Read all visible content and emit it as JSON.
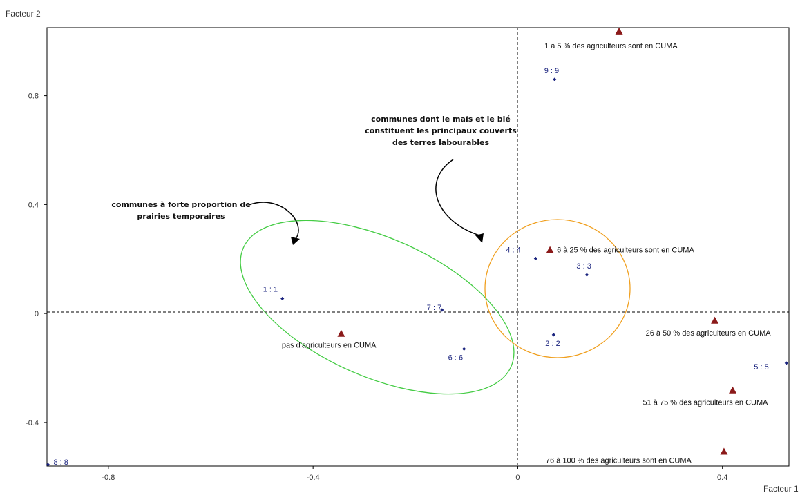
{
  "chart_data": {
    "type": "scatter",
    "xlabel": "Facteur 1",
    "ylabel": "Facteur 2",
    "xlim": [
      -0.92,
      0.53
    ],
    "ylim": [
      -0.56,
      1.05
    ],
    "xticks": [
      {
        "value": -0.8,
        "label": "-0.8"
      },
      {
        "value": -0.4,
        "label": "-0.4"
      },
      {
        "value": 0,
        "label": "0"
      },
      {
        "value": 0.4,
        "label": "0.4"
      }
    ],
    "yticks": [
      {
        "value": 0.8,
        "label": "0.8"
      },
      {
        "value": 0.4,
        "label": "0.4"
      },
      {
        "value": 0,
        "label": "0"
      },
      {
        "value": -0.4,
        "label": "-0.4"
      }
    ],
    "grid": false,
    "colors": {
      "points": "#1a237e",
      "modalities": "#8b1a1a",
      "green_ellipse": "#44cc44",
      "orange_ellipse": "#f0a020",
      "axis": "#000000"
    },
    "communes": [
      {
        "id": "1",
        "label": "1   : 1",
        "x": -0.46,
        "y": 0.055
      },
      {
        "id": "2",
        "label": "2   : 2",
        "x": 0.07,
        "y": -0.078
      },
      {
        "id": "3",
        "label": "3   : 3",
        "x": 0.135,
        "y": 0.142
      },
      {
        "id": "4",
        "label": "4   : 4",
        "x": 0.035,
        "y": 0.202
      },
      {
        "id": "5",
        "label": "5   : 5",
        "x": 0.525,
        "y": -0.182
      },
      {
        "id": "6",
        "label": "6   : 6",
        "x": -0.105,
        "y": -0.13
      },
      {
        "id": "7",
        "label": "7   : 7",
        "x": -0.148,
        "y": 0.013
      },
      {
        "id": "8",
        "label": "8   : 8",
        "x": -0.918,
        "y": -0.555
      },
      {
        "id": "9",
        "label": "9   : 9",
        "x": 0.072,
        "y": 0.86
      }
    ],
    "modalities": [
      {
        "label": "1 à 5 % des agriculteurs sont en CUMA",
        "x": 0.198,
        "y": 1.035
      },
      {
        "label": "6 à 25 % des agriculteurs sont en CUMA",
        "x": 0.063,
        "y": 0.232
      },
      {
        "label": "pas d'agriculteurs en CUMA",
        "x": -0.345,
        "y": -0.075
      },
      {
        "label": "26 à 50 % des agriculteurs en CUMA",
        "x": 0.385,
        "y": -0.027
      },
      {
        "label": "51 à 75 % des agriculteurs en CUMA",
        "x": 0.42,
        "y": -0.283
      },
      {
        "label": "76 à 100 % des agriculteurs sont en CUMA",
        "x": 0.403,
        "y": -0.508
      }
    ],
    "annotations": [
      {
        "lines": [
          "communes dont le maïs et le blé",
          "constituent les principaux couverts",
          "des terres labourables"
        ]
      },
      {
        "lines": [
          "communes à forte proportion de",
          "prairies temporaires"
        ]
      }
    ]
  }
}
